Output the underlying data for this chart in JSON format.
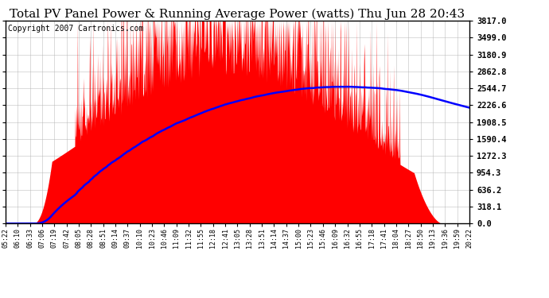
{
  "title": "Total PV Panel Power & Running Average Power (watts) Thu Jun 28 20:43",
  "copyright": "Copyright 2007 Cartronics.com",
  "y_max": 3817.0,
  "y_min": 0.0,
  "y_ticks": [
    0.0,
    318.1,
    636.2,
    954.3,
    1272.3,
    1590.4,
    1908.5,
    2226.6,
    2544.7,
    2862.8,
    3180.9,
    3499.0,
    3817.0
  ],
  "bg_color": "#ffffff",
  "plot_bg_color": "#ffffff",
  "grid_color": "#b0b0b0",
  "bar_color": "#ff0000",
  "line_color": "#0000ff",
  "border_color": "#000000",
  "title_fontsize": 11,
  "copyright_fontsize": 7
}
